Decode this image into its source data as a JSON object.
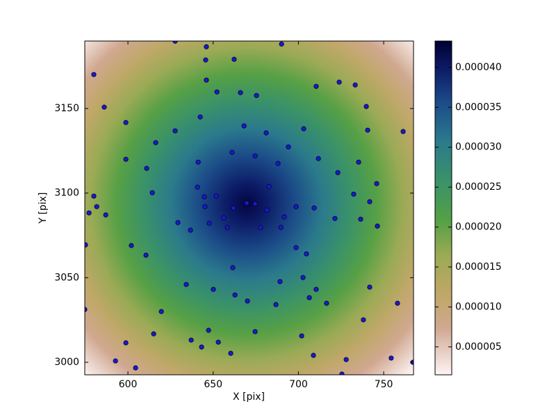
{
  "chart_data": {
    "type": "scatter",
    "x_label": "X [pix]",
    "y_label": "Y [pix]",
    "xlim": [
      574.7,
      767.5
    ],
    "ylim": [
      2992.6,
      3189.9
    ],
    "xticks": [
      600,
      650,
      700,
      750
    ],
    "yticks": [
      3000,
      3050,
      3100,
      3150
    ],
    "color": "#1a1acc",
    "x": [
      627.7,
      646.0,
      690.1,
      645.6,
      662.3,
      580.0,
      646.0,
      710.4,
      652.2,
      666.0,
      675.4,
      723.9,
      733.3,
      739.8,
      586.1,
      598.8,
      642.4,
      668.1,
      703.1,
      681.1,
      740.6,
      761.4,
      627.7,
      616.3,
      694.1,
      661.1,
      674.6,
      711.7,
      688.0,
      735.3,
      598.8,
      641.2,
      611.0,
      723.1,
      745.9,
      640.8,
      682.7,
      614.3,
      580.0,
      651.8,
      732.4,
      741.8,
      644.8,
      674.6,
      581.7,
      645.2,
      698.6,
      661.9,
      709.2,
      681.5,
      577.2,
      587.0,
      721.4,
      656.2,
      736.5,
      629.3,
      647.7,
      658.3,
      677.8,
      691.7,
      689.7,
      746.3,
      636.7,
      575.1,
      602.0,
      698.6,
      704.7,
      610.6,
      661.5,
      702.7,
      689.2,
      634.2,
      650.1,
      710.4,
      741.8,
      662.8,
      670.1,
      706.4,
      686.8,
      716.5,
      619.6,
      574.7,
      758.1,
      738.1,
      674.6,
      647.3,
      615.1,
      637.1,
      701.9,
      653.0,
      643.2,
      598.8,
      660.3,
      708.8,
      592.7,
      728.0,
      604.5,
      725.5,
      754.4,
      767.1,
      669.7
    ],
    "y": [
      3189.8,
      3186.5,
      3188.1,
      3178.7,
      3179.1,
      3170.1,
      3166.8,
      3163.1,
      3159.8,
      3159.4,
      3157.7,
      3165.6,
      3163.9,
      3151.2,
      3150.8,
      3141.7,
      3145.0,
      3139.7,
      3138.0,
      3135.6,
      3137.2,
      3136.4,
      3136.8,
      3129.8,
      3127.3,
      3124.1,
      3122.0,
      3120.4,
      3117.5,
      3118.3,
      3120.0,
      3118.3,
      3114.6,
      3112.1,
      3105.6,
      3103.5,
      3103.9,
      3100.2,
      3098.2,
      3098.2,
      3099.4,
      3094.9,
      3097.8,
      3093.7,
      3092.0,
      3092.0,
      3092.0,
      3091.2,
      3091.2,
      3090.0,
      3088.3,
      3087.1,
      3085.0,
      3085.4,
      3084.6,
      3082.6,
      3082.2,
      3079.7,
      3079.7,
      3085.9,
      3079.7,
      3080.5,
      3078.1,
      3069.4,
      3069.0,
      3067.8,
      3064.1,
      3063.3,
      3055.9,
      3050.1,
      3047.7,
      3046.0,
      3043.1,
      3043.1,
      3044.4,
      3039.8,
      3036.2,
      3038.2,
      3034.1,
      3034.9,
      3030.0,
      3031.2,
      3034.9,
      3025.1,
      3018.1,
      3018.9,
      3016.8,
      3013.1,
      3015.6,
      3011.9,
      3009.0,
      3011.5,
      3005.3,
      3004.1,
      3000.8,
      3001.6,
      2996.7,
      2993.0,
      3002.5,
      3000.0,
      3094.1
    ],
    "colorbar": {
      "lim": [
        1.5e-06,
        4.33e-05
      ],
      "ticks": [
        {
          "value": 5e-06,
          "label": "0.000005"
        },
        {
          "value": 1e-05,
          "label": "0.000010"
        },
        {
          "value": 1.5e-05,
          "label": "0.000015"
        },
        {
          "value": 2e-05,
          "label": "0.000020"
        },
        {
          "value": 2.5e-05,
          "label": "0.000025"
        },
        {
          "value": 3e-05,
          "label": "0.000030"
        },
        {
          "value": 3.5e-05,
          "label": "0.000035"
        },
        {
          "value": 4e-05,
          "label": "0.000040"
        }
      ]
    }
  }
}
